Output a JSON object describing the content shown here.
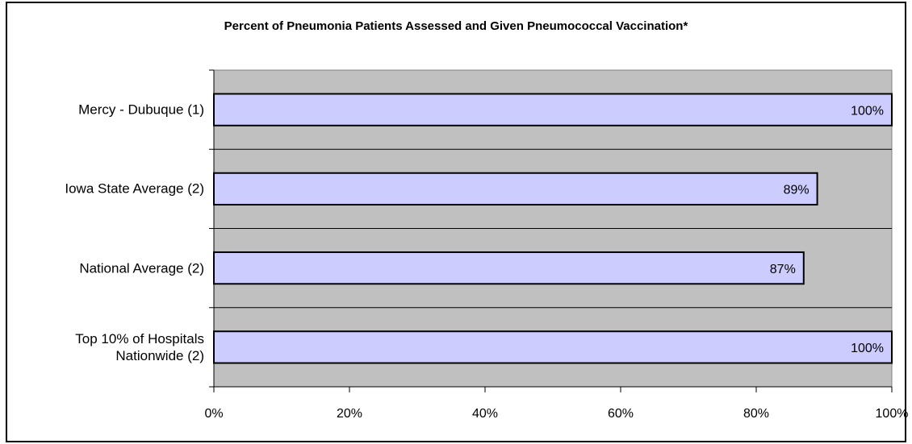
{
  "chart_data": {
    "type": "bar",
    "orientation": "horizontal",
    "title": "Percent of Pneumonia Patients Assessed and Given Pneumococcal Vaccination*",
    "categories": [
      "Mercy - Dubuque (1)",
      "Iowa State Average (2)",
      "National Average (2)",
      "Top 10% of Hospitals Nationwide (2)"
    ],
    "values": [
      100,
      89,
      87,
      100
    ],
    "value_labels": [
      "100%",
      "89%",
      "87%",
      "100%"
    ],
    "color": "#ccccff",
    "plot_background": "#c0c0c0",
    "xlim": [
      0,
      100
    ],
    "xticks": [
      {
        "value": 0,
        "label": "0%"
      },
      {
        "value": 20,
        "label": "20%"
      },
      {
        "value": 40,
        "label": "40%"
      },
      {
        "value": 60,
        "label": "60%"
      },
      {
        "value": 80,
        "label": "80%"
      },
      {
        "value": 100,
        "label": "100%"
      }
    ]
  }
}
